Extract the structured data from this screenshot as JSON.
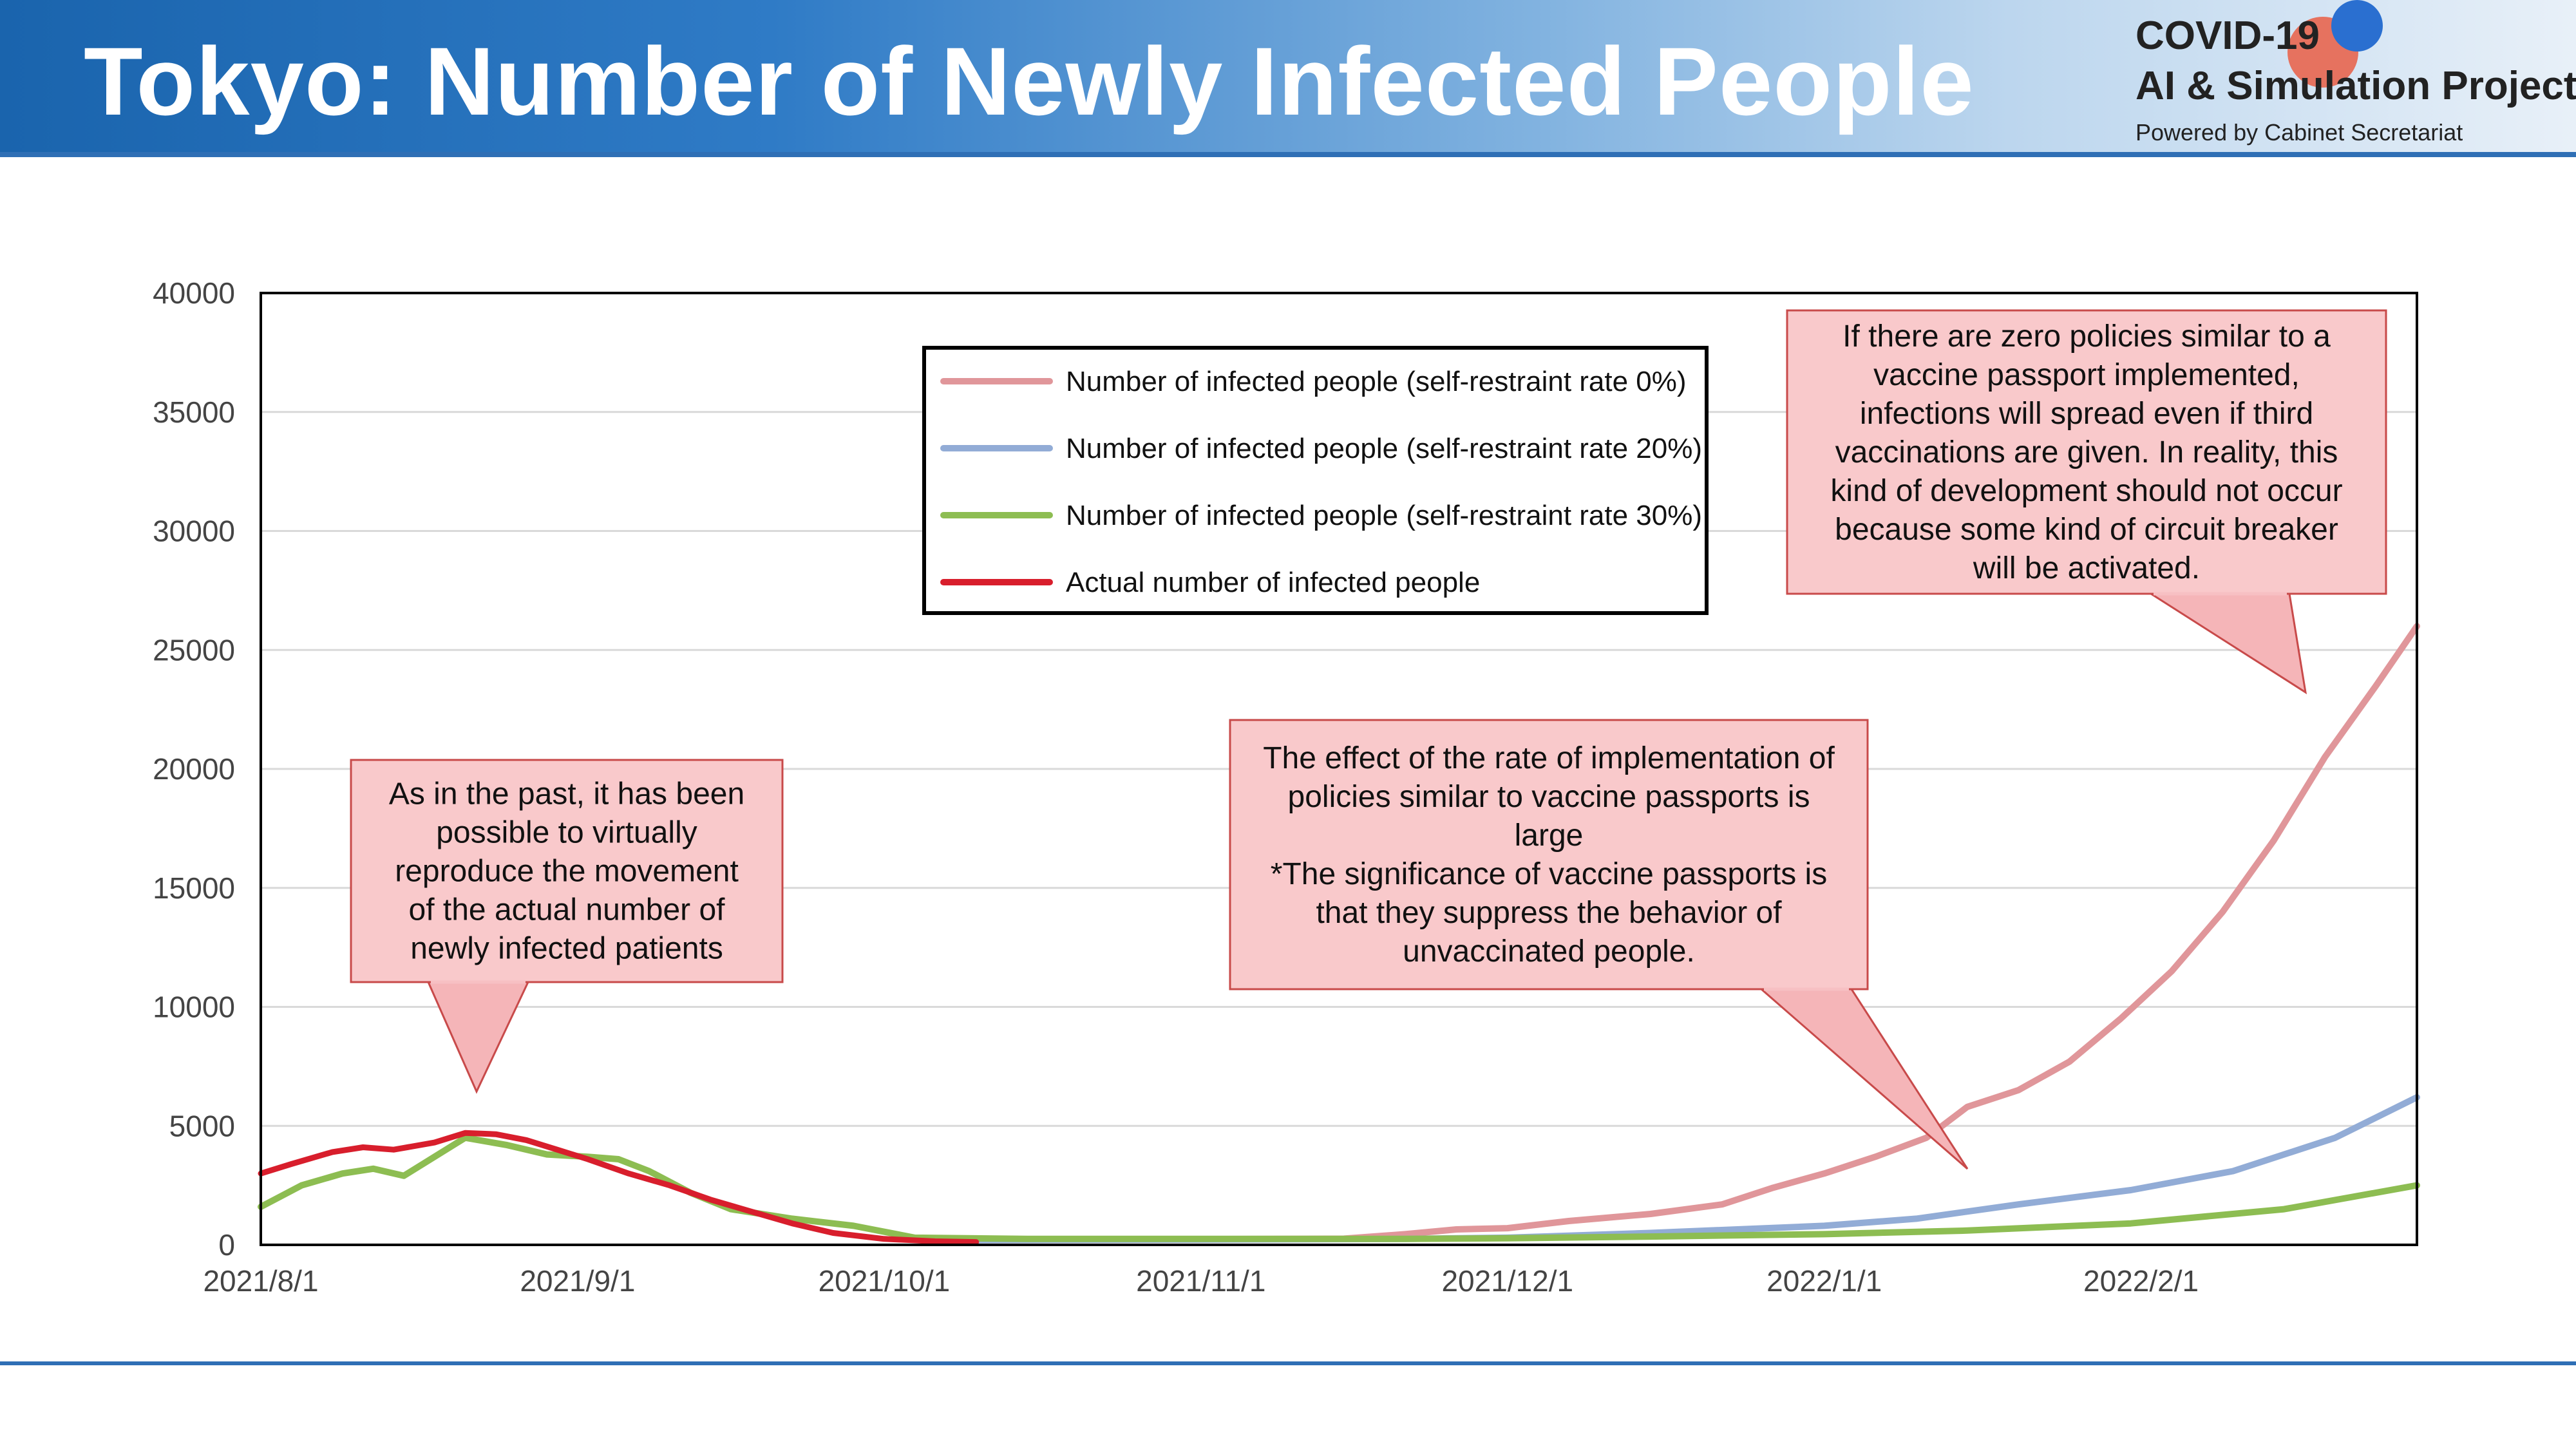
{
  "header": {
    "title": "Tokyo: Number of Newly Infected People",
    "logo_line1": "COVID-19",
    "logo_line2": "AI & Simulation Project",
    "logo_line3": "Powered by Cabinet Secretariat"
  },
  "chart_data": {
    "type": "line",
    "title": "",
    "xlabel": "",
    "ylabel": "",
    "ylim": [
      0,
      40000
    ],
    "yticks": [
      0,
      5000,
      10000,
      15000,
      20000,
      25000,
      30000,
      35000,
      40000
    ],
    "xlim": [
      "2021-08-01",
      "2022-02-28"
    ],
    "xticks": [
      "2021-08-01",
      "2021-09-01",
      "2021-10-01",
      "2021-11-01",
      "2021-12-01",
      "2022-01-01",
      "2022-02-01"
    ],
    "xtick_labels": [
      "2021/8/1",
      "2021/9/1",
      "2021/10/1",
      "2021/11/1",
      "2021/12/1",
      "2022/1/1",
      "2022/2/1"
    ],
    "grid": "horizontal",
    "legend": "top-center",
    "series": [
      {
        "name": "Number of infected people (self-restraint rate 0%)",
        "color": "#e0969a",
        "x": [
          "2021-10-05",
          "2021-10-15",
          "2021-11-01",
          "2021-11-15",
          "2021-11-21",
          "2021-11-26",
          "2021-12-01",
          "2021-12-07",
          "2021-12-15",
          "2021-12-22",
          "2021-12-27",
          "2022-01-01",
          "2022-01-06",
          "2022-01-11",
          "2022-01-15",
          "2022-01-20",
          "2022-01-25",
          "2022-01-30",
          "2022-02-04",
          "2022-02-09",
          "2022-02-14",
          "2022-02-19",
          "2022-02-24",
          "2022-02-28"
        ],
        "y": [
          200,
          220,
          240,
          260,
          450,
          650,
          700,
          1000,
          1300,
          1700,
          2400,
          3000,
          3700,
          4500,
          5800,
          6500,
          7700,
          9500,
          11500,
          14000,
          17000,
          20500,
          23500,
          26000
        ]
      },
      {
        "name": "Number of infected people (self-restraint rate 20%)",
        "color": "#92acd6",
        "x": [
          "2021-10-05",
          "2021-11-01",
          "2021-11-21",
          "2021-12-01",
          "2021-12-15",
          "2022-01-01",
          "2022-01-10",
          "2022-01-20",
          "2022-01-31",
          "2022-02-10",
          "2022-02-20",
          "2022-02-28"
        ],
        "y": [
          200,
          220,
          250,
          300,
          500,
          800,
          1100,
          1700,
          2300,
          3100,
          4500,
          6200
        ]
      },
      {
        "name": "Number of infected people (self-restraint rate 30%)",
        "color": "#8dbd52",
        "x": [
          "2021-08-01",
          "2021-08-05",
          "2021-08-09",
          "2021-08-12",
          "2021-08-15",
          "2021-08-18",
          "2021-08-21",
          "2021-08-25",
          "2021-08-29",
          "2021-09-02",
          "2021-09-05",
          "2021-09-08",
          "2021-09-12",
          "2021-09-16",
          "2021-09-22",
          "2021-09-28",
          "2021-10-04",
          "2021-10-15",
          "2021-11-01",
          "2021-11-21",
          "2021-12-01",
          "2021-12-15",
          "2022-01-01",
          "2022-01-15",
          "2022-01-31",
          "2022-02-15",
          "2022-02-28"
        ],
        "y": [
          1600,
          2500,
          3000,
          3200,
          2900,
          3700,
          4500,
          4200,
          3800,
          3700,
          3600,
          3100,
          2200,
          1500,
          1100,
          800,
          300,
          250,
          250,
          250,
          280,
          350,
          450,
          600,
          900,
          1500,
          2500
        ]
      },
      {
        "name": "Actual number of infected people",
        "color": "#d81e2c",
        "x": [
          "2021-08-01",
          "2021-08-04",
          "2021-08-08",
          "2021-08-11",
          "2021-08-14",
          "2021-08-18",
          "2021-08-21",
          "2021-08-24",
          "2021-08-27",
          "2021-08-30",
          "2021-09-02",
          "2021-09-06",
          "2021-09-10",
          "2021-09-14",
          "2021-09-18",
          "2021-09-22",
          "2021-09-26",
          "2021-10-01",
          "2021-10-06",
          "2021-10-10"
        ],
        "y": [
          3000,
          3400,
          3900,
          4100,
          4000,
          4300,
          4700,
          4650,
          4400,
          4000,
          3600,
          3000,
          2500,
          1900,
          1400,
          900,
          500,
          250,
          150,
          120
        ]
      }
    ],
    "annotations": [
      {
        "lines": [
          "As in the past, it has been",
          "possible to virtually",
          "reproduce the movement",
          "of the actual number of",
          "newly infected patients"
        ]
      },
      {
        "lines": [
          "The effect of the rate of implementation of",
          "policies similar to vaccine passports is",
          "large",
          "*The significance of vaccine passports is",
          "that they suppress the behavior of",
          "unvaccinated people."
        ]
      },
      {
        "lines": [
          "If there are zero policies similar to a",
          "vaccine passport implemented,",
          "infections will spread even if third",
          "vaccinations are given. In reality, this",
          "kind of development should not occur",
          "because some kind of circuit breaker",
          "will be activated."
        ]
      }
    ]
  }
}
